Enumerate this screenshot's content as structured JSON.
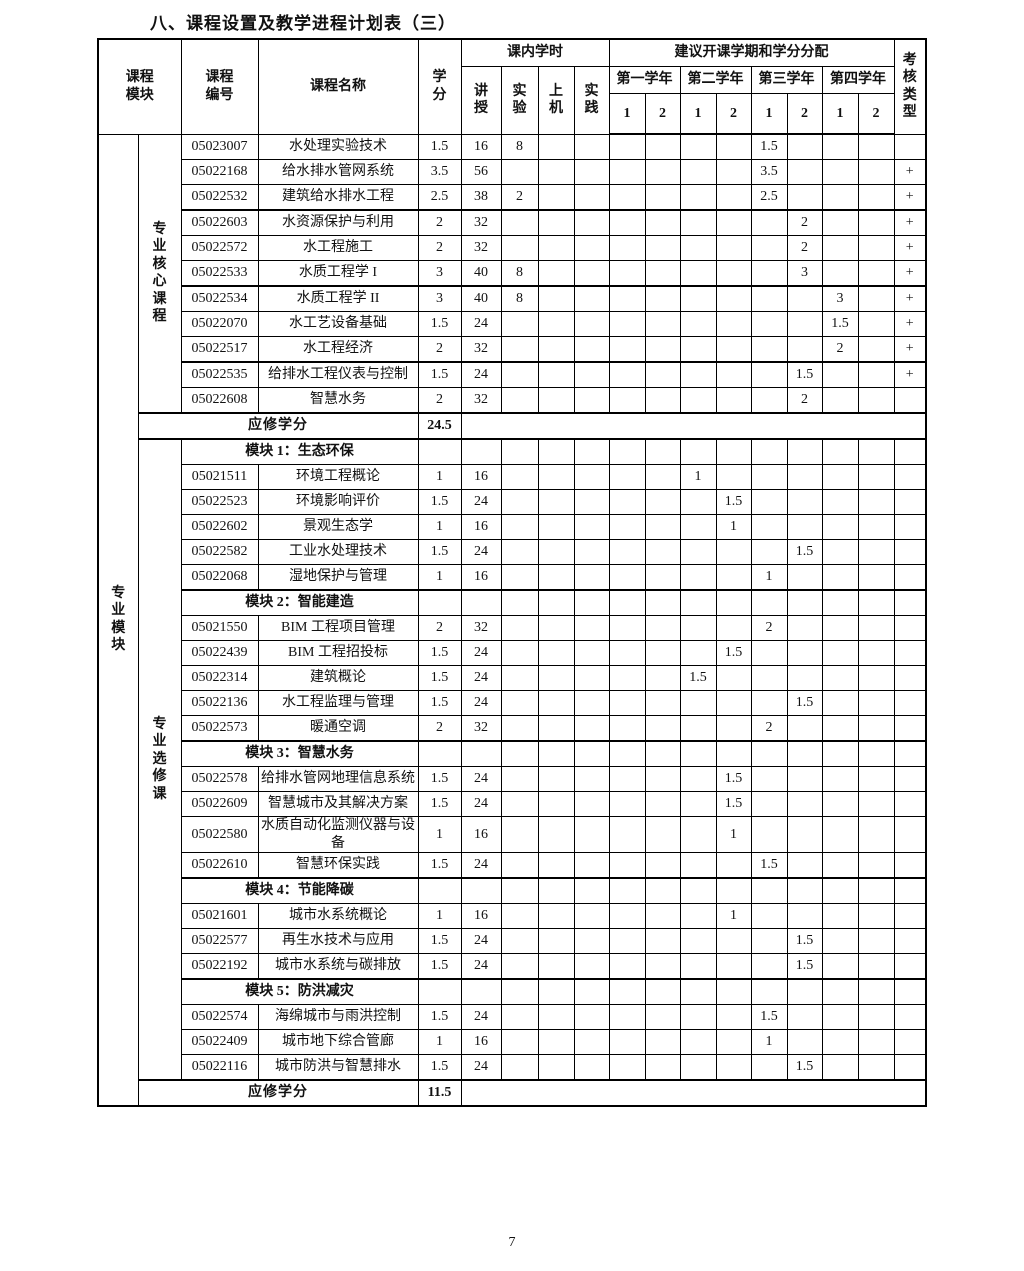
{
  "page": {
    "title": "八、课程设置及教学进程计划表（三）",
    "page_number": "7"
  },
  "table": {
    "header": {
      "course_module": "课程\n模块",
      "course_no": "课程\n编号",
      "course_name": "课程名称",
      "credit": "学\n分",
      "in_class_hours": "课内学时",
      "hours_cols": [
        "讲\n授",
        "实\n验",
        "上\n机",
        "实\n践"
      ],
      "semester_group": "建议开课学期和学分分配",
      "years": [
        "第一学年",
        "第二学年",
        "第三学年",
        "第四学年"
      ],
      "semester_nums": [
        "1",
        "2",
        "1",
        "2",
        "1",
        "2",
        "1",
        "2"
      ],
      "exam_type": "考\n核\n类\n型"
    },
    "left_labels": {
      "outer": "专\n业\n模\n块",
      "core": "专\n业\n核\n心\n课\n程",
      "elective": "专\n业\n选\n修\n课"
    },
    "rows": [
      {
        "t": "c",
        "code": "05023007",
        "name": "水处理实验技术",
        "credit": "1.5",
        "hours": [
          "16",
          "8",
          "",
          ""
        ],
        "sems": [
          "",
          "",
          "",
          "",
          "1.5",
          "",
          "",
          ""
        ],
        "exam": ""
      },
      {
        "t": "c",
        "code": "05022168",
        "name": "给水排水管网系统",
        "credit": "3.5",
        "hours": [
          "56",
          "",
          "",
          ""
        ],
        "sems": [
          "",
          "",
          "",
          "",
          "3.5",
          "",
          "",
          ""
        ],
        "exam": "+"
      },
      {
        "t": "c",
        "code": "05022532",
        "name": "建筑给水排水工程",
        "credit": "2.5",
        "hours": [
          "38",
          "2",
          "",
          ""
        ],
        "sems": [
          "",
          "",
          "",
          "",
          "2.5",
          "",
          "",
          ""
        ],
        "exam": "+"
      },
      {
        "t": "c",
        "code": "05022603",
        "name": "水资源保护与利用",
        "credit": "2",
        "hours": [
          "32",
          "",
          "",
          ""
        ],
        "sems": [
          "",
          "",
          "",
          "",
          "",
          "2",
          "",
          ""
        ],
        "exam": "+"
      },
      {
        "t": "c",
        "code": "05022572",
        "name": "水工程施工",
        "credit": "2",
        "hours": [
          "32",
          "",
          "",
          ""
        ],
        "sems": [
          "",
          "",
          "",
          "",
          "",
          "2",
          "",
          ""
        ],
        "exam": "+"
      },
      {
        "t": "c",
        "code": "05022533",
        "name": "水质工程学 I",
        "credit": "3",
        "hours": [
          "40",
          "8",
          "",
          ""
        ],
        "sems": [
          "",
          "",
          "",
          "",
          "",
          "3",
          "",
          ""
        ],
        "exam": "+"
      },
      {
        "t": "c",
        "code": "05022534",
        "name": "水质工程学 II",
        "credit": "3",
        "hours": [
          "40",
          "8",
          "",
          ""
        ],
        "sems": [
          "",
          "",
          "",
          "",
          "",
          "",
          "3",
          ""
        ],
        "exam": "+"
      },
      {
        "t": "c",
        "code": "05022070",
        "name": "水工艺设备基础",
        "credit": "1.5",
        "hours": [
          "24",
          "",
          "",
          ""
        ],
        "sems": [
          "",
          "",
          "",
          "",
          "",
          "",
          "1.5",
          ""
        ],
        "exam": "+"
      },
      {
        "t": "c",
        "code": "05022517",
        "name": "水工程经济",
        "credit": "2",
        "hours": [
          "32",
          "",
          "",
          ""
        ],
        "sems": [
          "",
          "",
          "",
          "",
          "",
          "",
          "2",
          ""
        ],
        "exam": "+"
      },
      {
        "t": "c",
        "code": "05022535",
        "name": "给排水工程仪表与控制",
        "credit": "1.5",
        "hours": [
          "24",
          "",
          "",
          ""
        ],
        "sems": [
          "",
          "",
          "",
          "",
          "",
          "1.5",
          "",
          ""
        ],
        "exam": "+"
      },
      {
        "t": "c",
        "code": "05022608",
        "name": "智慧水务",
        "credit": "2",
        "hours": [
          "32",
          "",
          "",
          ""
        ],
        "sems": [
          "",
          "",
          "",
          "",
          "",
          "2",
          "",
          ""
        ],
        "exam": ""
      },
      {
        "t": "t",
        "label": "应修学分",
        "credit": "24.5"
      },
      {
        "t": "m",
        "label": "模块 1：生态环保"
      },
      {
        "t": "c",
        "code": "05021511",
        "name": "环境工程概论",
        "credit": "1",
        "hours": [
          "16",
          "",
          "",
          ""
        ],
        "sems": [
          "",
          "",
          "1",
          "",
          "",
          "",
          "",
          ""
        ],
        "exam": ""
      },
      {
        "t": "c",
        "code": "05022523",
        "name": "环境影响评价",
        "credit": "1.5",
        "hours": [
          "24",
          "",
          "",
          ""
        ],
        "sems": [
          "",
          "",
          "",
          "1.5",
          "",
          "",
          "",
          ""
        ],
        "exam": ""
      },
      {
        "t": "c",
        "code": "05022602",
        "name": "景观生态学",
        "credit": "1",
        "hours": [
          "16",
          "",
          "",
          ""
        ],
        "sems": [
          "",
          "",
          "",
          "1",
          "",
          "",
          "",
          ""
        ],
        "exam": ""
      },
      {
        "t": "c",
        "code": "05022582",
        "name": "工业水处理技术",
        "credit": "1.5",
        "hours": [
          "24",
          "",
          "",
          ""
        ],
        "sems": [
          "",
          "",
          "",
          "",
          "",
          "1.5",
          "",
          ""
        ],
        "exam": ""
      },
      {
        "t": "c",
        "code": "05022068",
        "name": "湿地保护与管理",
        "credit": "1",
        "hours": [
          "16",
          "",
          "",
          ""
        ],
        "sems": [
          "",
          "",
          "",
          "",
          "1",
          "",
          "",
          ""
        ],
        "exam": ""
      },
      {
        "t": "m",
        "label": "模块 2：智能建造"
      },
      {
        "t": "c",
        "code": "05021550",
        "name": "BIM 工程项目管理",
        "credit": "2",
        "hours": [
          "32",
          "",
          "",
          ""
        ],
        "sems": [
          "",
          "",
          "",
          "",
          "2",
          "",
          "",
          ""
        ],
        "exam": ""
      },
      {
        "t": "c",
        "code": "05022439",
        "name": "BIM 工程招投标",
        "credit": "1.5",
        "hours": [
          "24",
          "",
          "",
          ""
        ],
        "sems": [
          "",
          "",
          "",
          "1.5",
          "",
          "",
          "",
          ""
        ],
        "exam": ""
      },
      {
        "t": "c",
        "code": "05022314",
        "name": "建筑概论",
        "credit": "1.5",
        "hours": [
          "24",
          "",
          "",
          ""
        ],
        "sems": [
          "",
          "",
          "1.5",
          "",
          "",
          "",
          "",
          ""
        ],
        "exam": ""
      },
      {
        "t": "c",
        "code": "05022136",
        "name": "水工程监理与管理",
        "credit": "1.5",
        "hours": [
          "24",
          "",
          "",
          ""
        ],
        "sems": [
          "",
          "",
          "",
          "",
          "",
          "1.5",
          "",
          ""
        ],
        "exam": ""
      },
      {
        "t": "c",
        "code": "05022573",
        "name": "暖通空调",
        "credit": "2",
        "hours": [
          "32",
          "",
          "",
          ""
        ],
        "sems": [
          "",
          "",
          "",
          "",
          "2",
          "",
          "",
          ""
        ],
        "exam": ""
      },
      {
        "t": "m",
        "label": "模块 3：智慧水务"
      },
      {
        "t": "c",
        "code": "05022578",
        "name": "给排水管网地理信息系统",
        "credit": "1.5",
        "hours": [
          "24",
          "",
          "",
          ""
        ],
        "sems": [
          "",
          "",
          "",
          "1.5",
          "",
          "",
          "",
          ""
        ],
        "exam": ""
      },
      {
        "t": "c",
        "code": "05022609",
        "name": "智慧城市及其解决方案",
        "credit": "1.5",
        "hours": [
          "24",
          "",
          "",
          ""
        ],
        "sems": [
          "",
          "",
          "",
          "1.5",
          "",
          "",
          "",
          ""
        ],
        "exam": ""
      },
      {
        "t": "c",
        "code": "05022580",
        "name": "水质自动化监测仪器与设备",
        "credit": "1",
        "hours": [
          "16",
          "",
          "",
          ""
        ],
        "sems": [
          "",
          "",
          "",
          "1",
          "",
          "",
          "",
          ""
        ],
        "exam": ""
      },
      {
        "t": "c",
        "code": "05022610",
        "name": "智慧环保实践",
        "credit": "1.5",
        "hours": [
          "24",
          "",
          "",
          ""
        ],
        "sems": [
          "",
          "",
          "",
          "",
          "1.5",
          "",
          "",
          ""
        ],
        "exam": ""
      },
      {
        "t": "m",
        "label": "模块 4：节能降碳"
      },
      {
        "t": "c",
        "code": "05021601",
        "name": "城市水系统概论",
        "credit": "1",
        "hours": [
          "16",
          "",
          "",
          ""
        ],
        "sems": [
          "",
          "",
          "",
          "1",
          "",
          "",
          "",
          ""
        ],
        "exam": ""
      },
      {
        "t": "c",
        "code": "05022577",
        "name": "再生水技术与应用",
        "credit": "1.5",
        "hours": [
          "24",
          "",
          "",
          ""
        ],
        "sems": [
          "",
          "",
          "",
          "",
          "",
          "1.5",
          "",
          ""
        ],
        "exam": ""
      },
      {
        "t": "c",
        "code": "05022192",
        "name": "城市水系统与碳排放",
        "credit": "1.5",
        "hours": [
          "24",
          "",
          "",
          ""
        ],
        "sems": [
          "",
          "",
          "",
          "",
          "",
          "1.5",
          "",
          ""
        ],
        "exam": ""
      },
      {
        "t": "m",
        "label": "模块 5：防洪减灾"
      },
      {
        "t": "c",
        "code": "05022574",
        "name": "海绵城市与雨洪控制",
        "credit": "1.5",
        "hours": [
          "24",
          "",
          "",
          ""
        ],
        "sems": [
          "",
          "",
          "",
          "",
          "1.5",
          "",
          "",
          ""
        ],
        "exam": ""
      },
      {
        "t": "c",
        "code": "05022409",
        "name": "城市地下综合管廊",
        "credit": "1",
        "hours": [
          "16",
          "",
          "",
          ""
        ],
        "sems": [
          "",
          "",
          "",
          "",
          "1",
          "",
          "",
          ""
        ],
        "exam": ""
      },
      {
        "t": "c",
        "code": "05022116",
        "name": "城市防洪与智慧排水",
        "credit": "1.5",
        "hours": [
          "24",
          "",
          "",
          ""
        ],
        "sems": [
          "",
          "",
          "",
          "",
          "",
          "1.5",
          "",
          ""
        ],
        "exam": ""
      },
      {
        "t": "t",
        "label": "应修学分",
        "credit": "11.5"
      }
    ]
  }
}
